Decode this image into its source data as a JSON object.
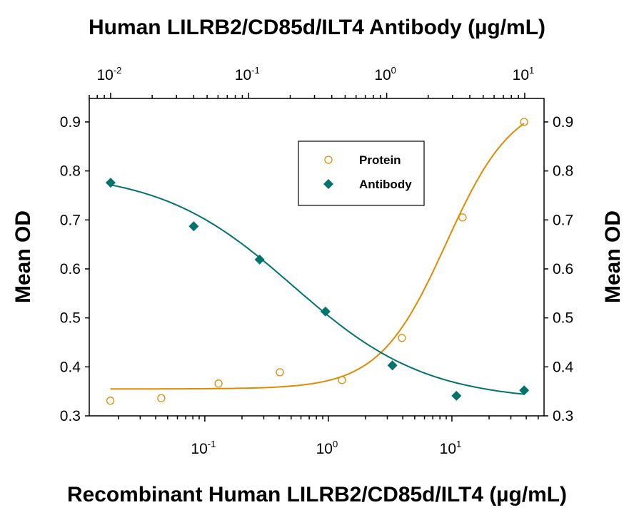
{
  "chart_data": {
    "type": "scatter",
    "title": "",
    "top_xlabel": "Human LILRB2/CD85d/ILT4 Antibody (µg/mL)",
    "xlabel": "Recombinant Human LILRB2/CD85d/ILT4 (µg/mL)",
    "ylabel": "Mean OD",
    "ylabel_right": "Mean OD",
    "x_scale": "log",
    "x_top_scale": "log",
    "xlim_bottom": [
      0.0116,
      55.7
    ],
    "xlim_top": [
      0.007,
      13.8
    ],
    "ylim": [
      0.3,
      0.948
    ],
    "y_ticks": [
      "0.3",
      "0.4",
      "0.5",
      "0.6",
      "0.7",
      "0.8",
      "0.9"
    ],
    "x_bottom_ticks": [
      {
        "base": "10",
        "exp": "-1"
      },
      {
        "base": "10",
        "exp": "0"
      },
      {
        "base": "10",
        "exp": "1"
      }
    ],
    "x_top_ticks": [
      {
        "base": "10",
        "exp": "-2"
      },
      {
        "base": "10",
        "exp": "-1"
      },
      {
        "base": "10",
        "exp": "0"
      },
      {
        "base": "10",
        "exp": "1"
      }
    ],
    "grid": false,
    "legend_position": "top-center",
    "series": [
      {
        "name": "Protein",
        "axis": "bottom",
        "marker": "open-circle",
        "color": "#E08A00",
        "x": [
          0.0172,
          0.0444,
          0.129,
          0.405,
          1.29,
          3.94,
          12.2,
          38.4
        ],
        "y": [
          0.331,
          0.336,
          0.366,
          0.389,
          0.373,
          0.459,
          0.705,
          0.9
        ]
      },
      {
        "name": "Antibody",
        "axis": "top",
        "marker": "filled-diamond",
        "color": "#00736E",
        "x": [
          0.01,
          0.04,
          0.12,
          0.36,
          1.1,
          3.2,
          9.9
        ],
        "y": [
          0.776,
          0.687,
          0.619,
          0.513,
          0.403,
          0.341,
          0.352
        ]
      }
    ]
  }
}
